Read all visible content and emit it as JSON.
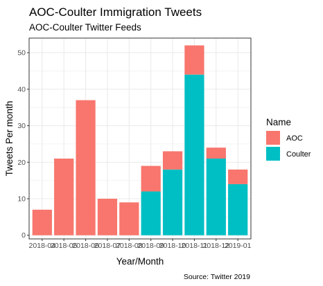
{
  "chart_data": {
    "type": "bar",
    "stacked": true,
    "title": "AOC-Coulter Immigration Tweets",
    "subtitle": "AOC-Coulter Twitter Feeds",
    "xlabel": "Year/Month",
    "ylabel": "Tweets Per month",
    "caption": "Source: Twitter 2019",
    "categories": [
      "2018-04",
      "2018-05",
      "2018-06",
      "2018-07",
      "2018-08",
      "2018-09",
      "2018-10",
      "2018-11",
      "2018-12",
      "2019-01"
    ],
    "series": [
      {
        "name": "AOC",
        "color": "#F8766D",
        "values": [
          7,
          21,
          37,
          10,
          9,
          7,
          5,
          8,
          3,
          4
        ]
      },
      {
        "name": "Coulter",
        "color": "#00BFC4",
        "values": [
          0,
          0,
          0,
          0,
          0,
          12,
          18,
          44,
          21,
          14
        ]
      }
    ],
    "ylim": [
      0,
      52
    ],
    "yticks": [
      0,
      10,
      20,
      30,
      40,
      50
    ],
    "legend": {
      "title": "Name",
      "placement": "right"
    },
    "grid": true,
    "background": "#FFFFFF",
    "grid_color": "#EBEBEB",
    "panel_border": "#333333"
  }
}
